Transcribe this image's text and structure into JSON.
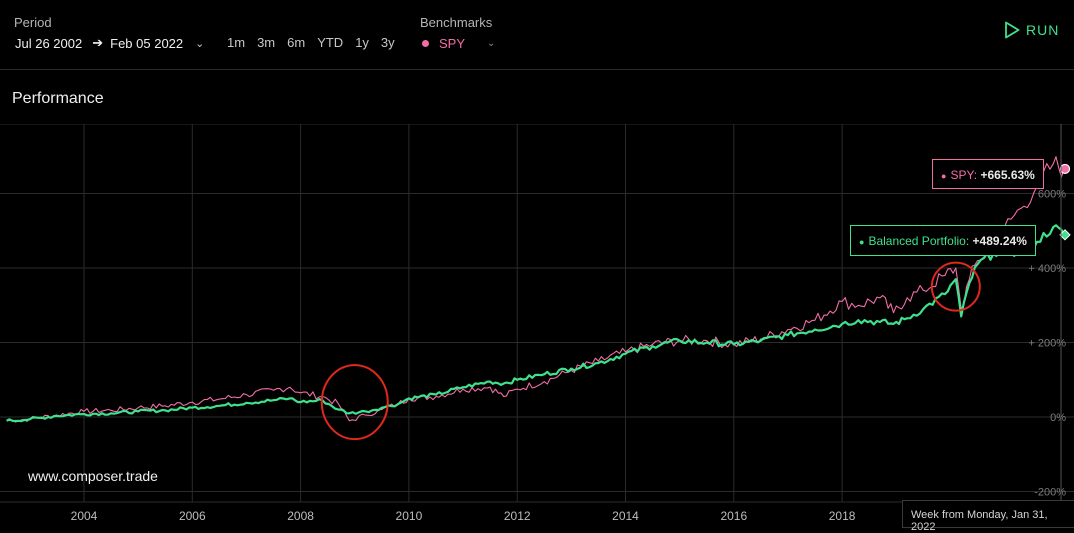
{
  "period": {
    "label": "Period",
    "start": "Jul 26 2002",
    "end": "Feb 05 2022",
    "ranges": [
      "1m",
      "3m",
      "6m",
      "YTD",
      "1y",
      "3y"
    ]
  },
  "benchmarks": {
    "label": "Benchmarks",
    "selected": "SPY"
  },
  "run_label": "RUN",
  "section_title": "Performance",
  "watermark": "www.composer.trade",
  "hover_readout": "Week from Monday, Jan 31, 2022",
  "tooltips": {
    "spy_name": "SPY:",
    "spy_value": "+665.63%",
    "balanced_name": "Balanced Portfolio:",
    "balanced_value": "+489.24%"
  },
  "colors": {
    "spy": "#f36ea6",
    "balanced": "#3ee28c",
    "annotation": "#e0281c",
    "grid": "#2b2b2b"
  },
  "chart_data": {
    "type": "line",
    "x_ticks": [
      "2004",
      "2006",
      "2008",
      "2010",
      "2012",
      "2014",
      "2016",
      "2018"
    ],
    "y_ticks": [
      "-200%",
      "0%",
      "+ 200%",
      "+ 400%",
      "600%"
    ],
    "xlim": [
      2002.57,
      2022.1
    ],
    "ylim": [
      -230,
      770
    ],
    "grid": true,
    "series": [
      {
        "name": "SPY",
        "x": [
          2002.57,
          2003.0,
          2003.5,
          2004.0,
          2004.5,
          2005.0,
          2005.5,
          2006.0,
          2006.5,
          2007.0,
          2007.5,
          2007.8,
          2008.0,
          2008.4,
          2008.7,
          2008.9,
          2009.2,
          2009.5,
          2009.8,
          2010.0,
          2010.5,
          2011.0,
          2011.5,
          2011.75,
          2012.0,
          2012.5,
          2013.0,
          2013.5,
          2014.0,
          2014.5,
          2015.0,
          2015.5,
          2016.0,
          2016.5,
          2017.0,
          2017.5,
          2018.0,
          2018.3,
          2018.7,
          2018.95,
          2019.2,
          2019.5,
          2019.9,
          2020.1,
          2020.2,
          2020.35,
          2020.5,
          2020.8,
          2021.0,
          2021.3,
          2021.6,
          2021.9,
          2022.1
        ],
        "values": [
          -10,
          -5,
          5,
          15,
          18,
          25,
          30,
          40,
          48,
          60,
          72,
          80,
          65,
          55,
          35,
          -10,
          5,
          20,
          35,
          50,
          55,
          75,
          80,
          55,
          75,
          95,
          125,
          150,
          175,
          195,
          205,
          205,
          195,
          210,
          235,
          260,
          310,
          300,
          320,
          280,
          320,
          340,
          380,
          400,
          290,
          370,
          420,
          460,
          510,
          560,
          620,
          680,
          666
        ]
      },
      {
        "name": "Balanced Portfolio",
        "x": [
          2002.57,
          2003.0,
          2003.5,
          2004.0,
          2004.5,
          2005.0,
          2005.5,
          2006.0,
          2006.5,
          2007.0,
          2007.5,
          2007.8,
          2008.0,
          2008.4,
          2008.7,
          2008.9,
          2009.2,
          2009.5,
          2009.8,
          2010.0,
          2010.5,
          2011.0,
          2011.5,
          2011.75,
          2012.0,
          2012.5,
          2013.0,
          2013.5,
          2014.0,
          2014.5,
          2015.0,
          2015.5,
          2016.0,
          2016.5,
          2017.0,
          2017.5,
          2018.0,
          2018.3,
          2018.7,
          2018.95,
          2019.2,
          2019.5,
          2019.9,
          2020.1,
          2020.2,
          2020.35,
          2020.5,
          2020.8,
          2021.0,
          2021.3,
          2021.6,
          2021.9,
          2022.1
        ],
        "values": [
          -10,
          -6,
          3,
          8,
          10,
          15,
          18,
          25,
          30,
          38,
          45,
          50,
          40,
          45,
          20,
          10,
          15,
          25,
          35,
          50,
          60,
          80,
          95,
          90,
          100,
          115,
          130,
          145,
          170,
          190,
          205,
          200,
          195,
          205,
          220,
          235,
          250,
          260,
          255,
          250,
          265,
          290,
          330,
          370,
          270,
          360,
          410,
          440,
          450,
          440,
          470,
          510,
          489
        ]
      }
    ],
    "annotations": [
      {
        "type": "circle",
        "x": 2009.0,
        "y": 40
      },
      {
        "type": "circle",
        "x": 2020.1,
        "y": 350
      }
    ]
  }
}
